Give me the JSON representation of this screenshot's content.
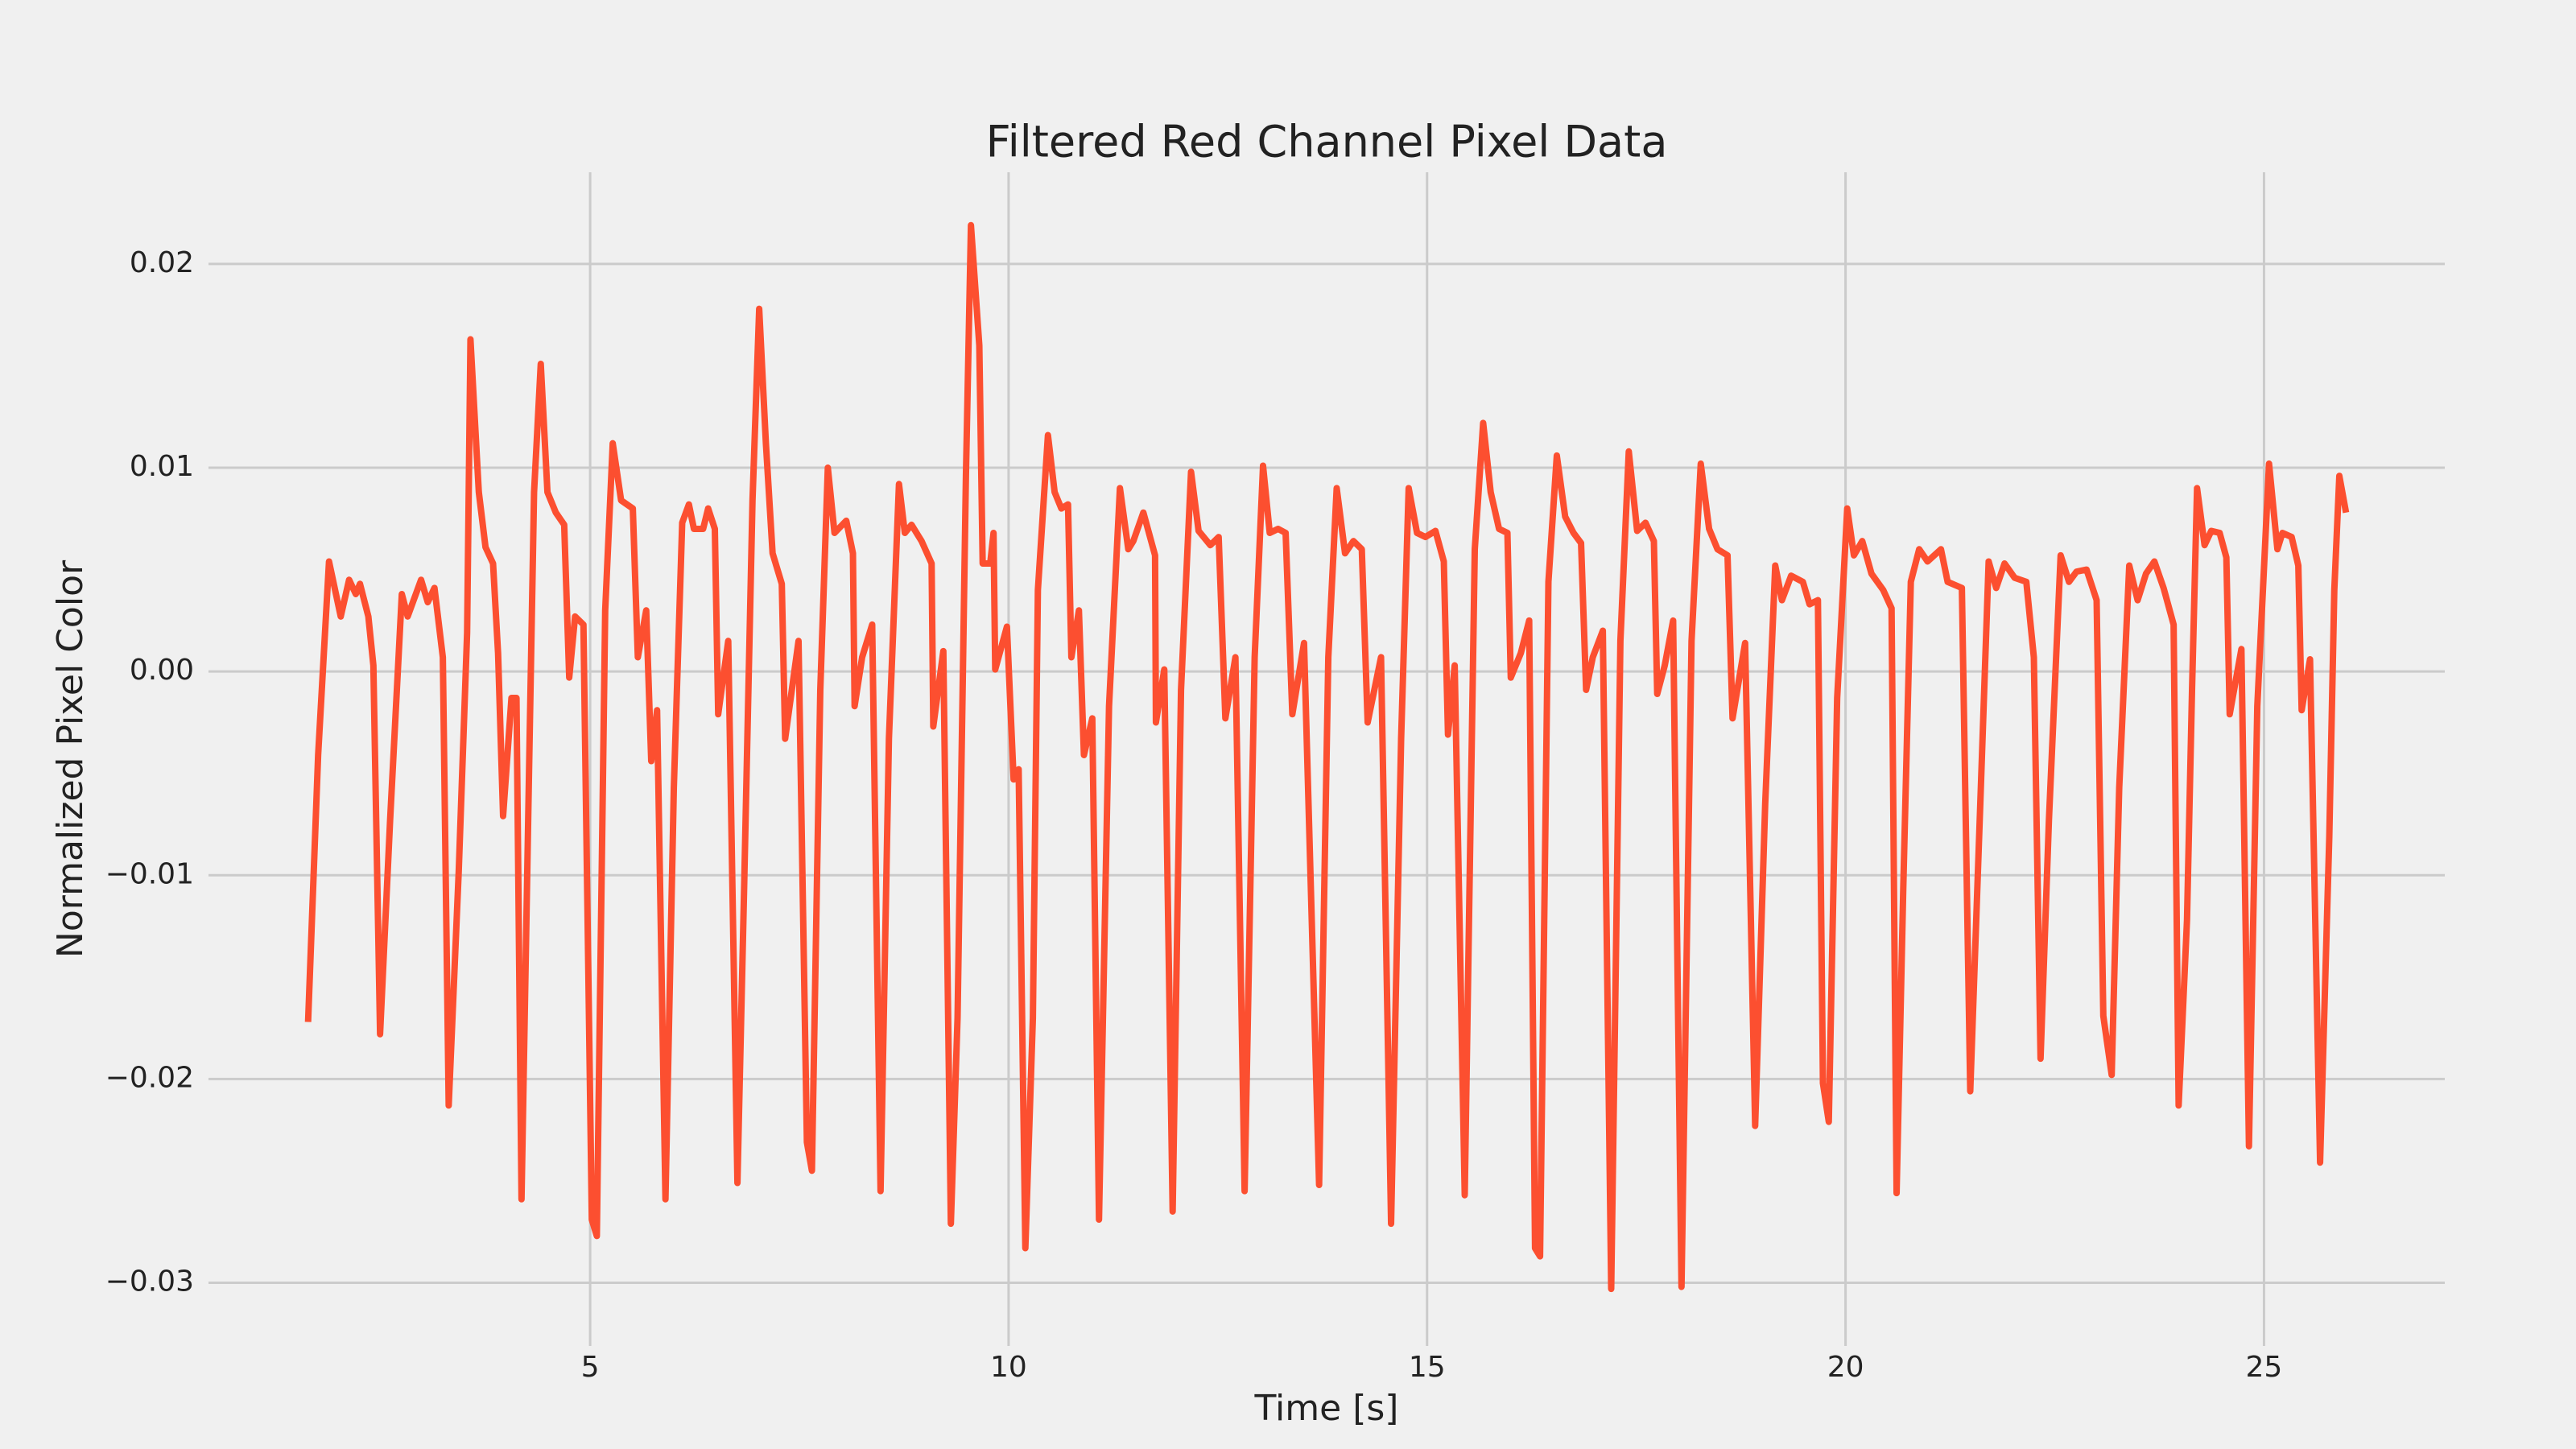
{
  "chart_data": {
    "type": "line",
    "title": "Filtered Red Channel Pixel Data",
    "xlabel": "Time [s]",
    "ylabel": "Normalized Pixel Color",
    "xlim": [
      0.44,
      27.16
    ],
    "ylim": [
      -0.0331,
      0.0245
    ],
    "xticks": [
      5,
      10,
      15,
      20,
      25
    ],
    "yticks": [
      {
        "value": -0.03,
        "label": "−0.03"
      },
      {
        "value": -0.02,
        "label": "−0.02"
      },
      {
        "value": -0.01,
        "label": "−0.01"
      },
      {
        "value": 0,
        "label": "0.00"
      },
      0.01,
      0.02
    ],
    "grid": true,
    "series": [
      {
        "color": "#fc4f30",
        "x": [
          1.63,
          1.75,
          1.88,
          2.02,
          2.12,
          2.2,
          2.25,
          2.35,
          2.41,
          2.49,
          2.61,
          2.75,
          2.82,
          2.98,
          3.06,
          3.14,
          3.24,
          3.31,
          3.43,
          3.53,
          3.57,
          3.67,
          3.75,
          3.84,
          3.9,
          3.96,
          4.06,
          4.12,
          4.18,
          4.27,
          4.33,
          4.41,
          4.49,
          4.59,
          4.69,
          4.75,
          4.82,
          4.92,
          5.02,
          5.08,
          5.18,
          5.27,
          5.37,
          5.51,
          5.57,
          5.67,
          5.73,
          5.8,
          5.9,
          6.0,
          6.1,
          6.18,
          6.24,
          6.35,
          6.41,
          6.49,
          6.53,
          6.65,
          6.76,
          6.84,
          6.94,
          7.02,
          7.1,
          7.18,
          7.29,
          7.33,
          7.49,
          7.59,
          7.65,
          7.75,
          7.84,
          7.92,
          8.06,
          8.14,
          8.16,
          8.25,
          8.37,
          8.47,
          8.57,
          8.69,
          8.76,
          8.84,
          8.96,
          9.08,
          9.1,
          9.22,
          9.31,
          9.39,
          9.49,
          9.55,
          9.65,
          9.69,
          9.78,
          9.82,
          9.84,
          9.98,
          10.06,
          10.12,
          10.2,
          10.29,
          10.35,
          10.47,
          10.55,
          10.63,
          10.71,
          10.75,
          10.84,
          10.9,
          11.0,
          11.08,
          11.2,
          11.33,
          11.43,
          11.49,
          11.61,
          11.75,
          11.76,
          11.86,
          11.96,
          12.06,
          12.18,
          12.27,
          12.41,
          12.51,
          12.59,
          12.71,
          12.82,
          12.94,
          13.04,
          13.12,
          13.22,
          13.31,
          13.39,
          13.53,
          13.71,
          13.82,
          13.92,
          14.02,
          14.12,
          14.22,
          14.29,
          14.45,
          14.57,
          14.69,
          14.78,
          14.88,
          14.98,
          15.1,
          15.2,
          15.25,
          15.33,
          15.45,
          15.57,
          15.67,
          15.76,
          15.86,
          15.96,
          16.0,
          16.12,
          16.22,
          16.29,
          16.35,
          16.45,
          16.55,
          16.65,
          16.75,
          16.84,
          16.9,
          16.98,
          17.1,
          17.2,
          17.31,
          17.41,
          17.51,
          17.61,
          17.71,
          17.75,
          17.84,
          17.94,
          18.04,
          18.16,
          18.27,
          18.37,
          18.47,
          18.59,
          18.65,
          18.8,
          18.92,
          19.04,
          19.16,
          19.24,
          19.35,
          19.49,
          19.57,
          19.67,
          19.73,
          19.8,
          19.9,
          20.02,
          20.1,
          20.2,
          20.31,
          20.45,
          20.55,
          20.61,
          20.69,
          20.78,
          20.88,
          20.98,
          21.14,
          21.22,
          21.39,
          21.49,
          21.61,
          21.71,
          21.8,
          21.9,
          22.02,
          22.16,
          22.25,
          22.33,
          22.43,
          22.57,
          22.67,
          22.76,
          22.88,
          23.0,
          23.08,
          23.18,
          23.27,
          23.39,
          23.49,
          23.59,
          23.69,
          23.8,
          23.92,
          23.98,
          24.08,
          24.14,
          24.2,
          24.29,
          24.37,
          24.47,
          24.55,
          24.59,
          24.73,
          24.82,
          24.92,
          25.06,
          25.16,
          25.22,
          25.33,
          25.41,
          25.45,
          25.55,
          25.67,
          25.78,
          25.84,
          25.9,
          25.98
        ],
        "values": [
          -0.0172,
          -0.0041,
          0.0054,
          0.0027,
          0.0045,
          0.0038,
          0.0043,
          0.0027,
          0.0003,
          -0.0178,
          -0.0073,
          0.0038,
          0.0027,
          0.0045,
          0.0034,
          0.0041,
          0.0007,
          -0.0213,
          -0.0098,
          0.0019,
          0.0163,
          0.0088,
          0.0061,
          0.0053,
          0.0009,
          -0.0071,
          -0.0013,
          -0.0013,
          -0.0259,
          -0.0049,
          0.0088,
          0.0151,
          0.0088,
          0.0078,
          0.0072,
          -0.0003,
          0.0027,
          0.0023,
          -0.0269,
          -0.0277,
          0.003,
          0.0112,
          0.0084,
          0.008,
          0.0007,
          0.003,
          -0.0044,
          -0.0019,
          -0.0259,
          -0.0057,
          0.0073,
          0.0082,
          0.007,
          0.007,
          0.008,
          0.007,
          -0.0021,
          0.0015,
          -0.0251,
          -0.0106,
          0.0084,
          0.0178,
          0.0112,
          0.0058,
          0.0043,
          -0.0033,
          0.0015,
          -0.0231,
          -0.0245,
          -0.0009,
          0.01,
          0.0068,
          0.0074,
          0.0058,
          -0.0017,
          0.0007,
          0.0023,
          -0.0255,
          -0.0033,
          0.0092,
          0.0068,
          0.0072,
          0.0064,
          0.0053,
          -0.0027,
          0.001,
          -0.0271,
          -0.017,
          0.0096,
          0.0219,
          0.016,
          0.0053,
          0.0053,
          0.0068,
          0.0001,
          0.0022,
          -0.0053,
          -0.0048,
          -0.0283,
          -0.017,
          0.004,
          0.0116,
          0.0088,
          0.008,
          0.0082,
          0.0007,
          0.003,
          -0.0041,
          -0.0023,
          -0.0269,
          -0.0017,
          0.009,
          0.006,
          0.0064,
          0.0078,
          0.0057,
          -0.0025,
          0.0001,
          -0.0265,
          -0.0009,
          0.0098,
          0.0069,
          0.0062,
          0.0066,
          -0.0023,
          0.0007,
          -0.0255,
          0.0007,
          0.0101,
          0.0068,
          0.007,
          0.0068,
          -0.0021,
          0.0014,
          -0.0252,
          0.0007,
          0.009,
          0.0058,
          0.0064,
          0.006,
          -0.0025,
          0.0007,
          -0.0271,
          -0.0033,
          0.009,
          0.0068,
          0.0066,
          0.0069,
          0.0054,
          -0.0031,
          0.0003,
          -0.0257,
          0.006,
          0.0122,
          0.0088,
          0.007,
          0.0068,
          -0.0003,
          0.0009,
          0.0025,
          -0.0283,
          -0.0287,
          0.0044,
          0.0106,
          0.0076,
          0.0068,
          0.0063,
          -0.0009,
          0.0007,
          0.002,
          -0.0303,
          0.0015,
          0.0108,
          0.0069,
          0.0073,
          0.0064,
          -0.0011,
          0.0003,
          0.0025,
          -0.0302,
          0.0015,
          0.0102,
          0.007,
          0.006,
          0.0057,
          -0.0023,
          0.0014,
          -0.0223,
          -0.0065,
          0.0052,
          0.0035,
          0.0047,
          0.0044,
          0.0033,
          0.0035,
          -0.0202,
          -0.0221,
          -0.0013,
          0.008,
          0.0057,
          0.0064,
          0.0048,
          0.004,
          0.0031,
          -0.0256,
          -0.0106,
          0.0044,
          0.006,
          0.0054,
          0.006,
          0.0044,
          0.0041,
          -0.0206,
          -0.0065,
          0.0054,
          0.0041,
          0.0053,
          0.0046,
          0.0044,
          0.0007,
          -0.019,
          -0.0073,
          0.0057,
          0.0044,
          0.0049,
          0.005,
          0.0035,
          -0.0169,
          -0.0198,
          -0.0057,
          0.0052,
          0.0035,
          0.0048,
          0.0054,
          0.0041,
          0.0023,
          -0.0213,
          -0.0122,
          -0.0009,
          0.009,
          0.0062,
          0.0069,
          0.0068,
          0.0056,
          -0.0021,
          0.0011,
          -0.0233,
          -0.0017,
          0.0102,
          0.006,
          0.0068,
          0.0066,
          0.0052,
          -0.0019,
          0.0006,
          -0.0241,
          -0.0081,
          0.004,
          0.0096,
          0.0078
        ]
      }
    ]
  }
}
